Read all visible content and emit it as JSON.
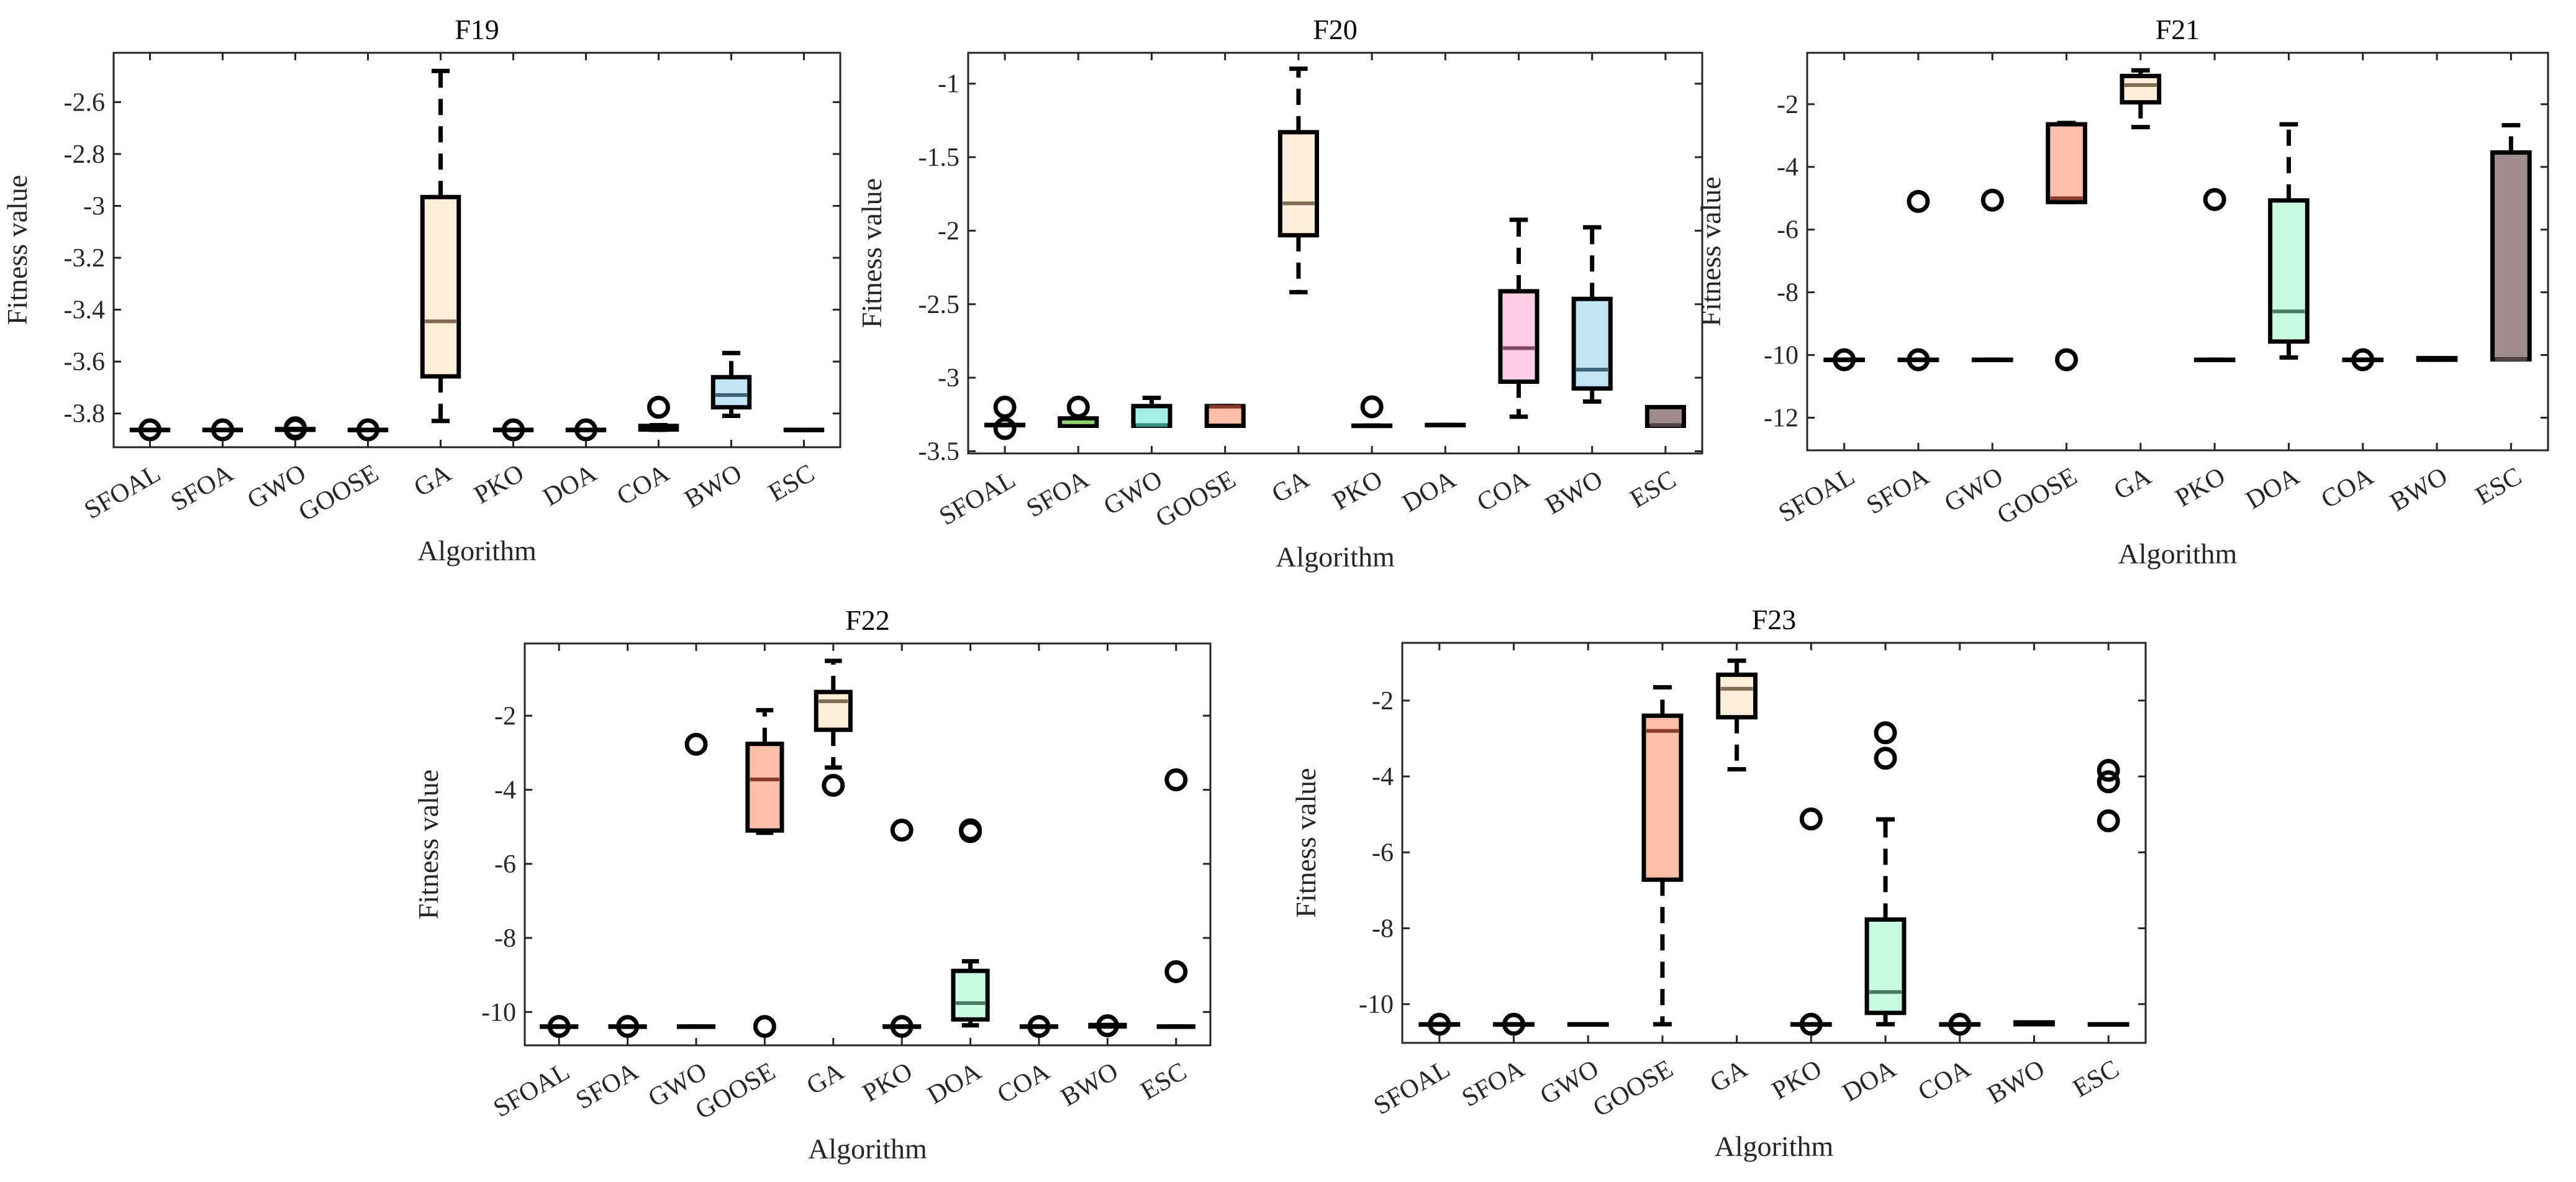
{
  "chart_data": [
    {
      "type": "boxplot",
      "title": "F19",
      "xlabel": "Algorithm",
      "ylabel": "Fitness value",
      "ylim": [
        -3.93,
        -2.41
      ],
      "yticks": [
        -3.8,
        -3.6,
        -3.4,
        -3.2,
        -3,
        -2.8,
        -2.6
      ],
      "ytick_labels": [
        "-3.8",
        "-3.6",
        "-3.4",
        "-3.2",
        "-3",
        "-2.8",
        "-2.6"
      ],
      "grid": false,
      "boxes": [
        {
          "name": "SFOAL",
          "q1": -3.863,
          "median": -3.863,
          "q3": -3.863,
          "lo": -3.863,
          "hi": -3.863,
          "outliers": [
            -3.863
          ]
        },
        {
          "name": "SFOA",
          "q1": -3.863,
          "median": -3.863,
          "q3": -3.863,
          "lo": -3.863,
          "hi": -3.863,
          "outliers": [
            -3.863
          ]
        },
        {
          "name": "GWO",
          "q1": -3.863,
          "median": -3.863,
          "q3": -3.86,
          "lo": -3.863,
          "hi": -3.86,
          "outliers": [
            -3.86,
            -3.855
          ]
        },
        {
          "name": "GOOSE",
          "q1": -3.863,
          "median": -3.863,
          "q3": -3.863,
          "lo": -3.863,
          "hi": -3.863,
          "outliers": [
            -3.863
          ]
        },
        {
          "name": "GA",
          "q1": -3.657,
          "median": -3.445,
          "q3": -2.966,
          "lo": -3.829,
          "hi": -2.48,
          "outliers": []
        },
        {
          "name": "PKO",
          "q1": -3.863,
          "median": -3.863,
          "q3": -3.863,
          "lo": -3.863,
          "hi": -3.863,
          "outliers": [
            -3.863
          ]
        },
        {
          "name": "DOA",
          "q1": -3.863,
          "median": -3.863,
          "q3": -3.863,
          "lo": -3.863,
          "hi": -3.863,
          "outliers": [
            -3.863
          ]
        },
        {
          "name": "COA",
          "q1": -3.862,
          "median": -3.855,
          "q3": -3.848,
          "lo": -3.863,
          "hi": -3.845,
          "outliers": [
            -3.776
          ]
        },
        {
          "name": "BWO",
          "q1": -3.776,
          "median": -3.729,
          "q3": -3.66,
          "lo": -3.809,
          "hi": -3.567,
          "outliers": []
        },
        {
          "name": "ESC",
          "q1": -3.863,
          "median": -3.863,
          "q3": -3.863,
          "lo": -3.863,
          "hi": -3.863,
          "outliers": []
        }
      ]
    },
    {
      "type": "boxplot",
      "title": "F20",
      "xlabel": "Algorithm",
      "ylabel": "Fitness value",
      "ylim": [
        -3.515,
        -0.79
      ],
      "yticks": [
        -3.5,
        -3,
        -2.5,
        -2,
        -1.5,
        -1
      ],
      "ytick_labels": [
        "-3.5",
        "-3",
        "-2.5",
        "-2",
        "-1.5",
        "-1"
      ],
      "grid": false,
      "boxes": [
        {
          "name": "SFOAL",
          "q1": -3.321,
          "median": -3.321,
          "q3": -3.321,
          "lo": -3.321,
          "hi": -3.321,
          "outliers": [
            -3.2,
            -3.346
          ]
        },
        {
          "name": "SFOA",
          "q1": -3.327,
          "median": -3.303,
          "q3": -3.277,
          "lo": -3.327,
          "hi": -3.277,
          "outliers": [
            -3.2
          ]
        },
        {
          "name": "GWO",
          "q1": -3.327,
          "median": -3.322,
          "q3": -3.193,
          "lo": -3.327,
          "hi": -3.137,
          "outliers": []
        },
        {
          "name": "GOOSE",
          "q1": -3.327,
          "median": -3.197,
          "q3": -3.193,
          "lo": -3.327,
          "hi": -3.193,
          "outliers": []
        },
        {
          "name": "GA",
          "q1": -2.031,
          "median": -1.814,
          "q3": -1.33,
          "lo": -2.418,
          "hi": -0.898,
          "outliers": []
        },
        {
          "name": "PKO",
          "q1": -3.326,
          "median": -3.326,
          "q3": -3.326,
          "lo": -3.326,
          "hi": -3.326,
          "outliers": [
            -3.198
          ]
        },
        {
          "name": "DOA",
          "q1": -3.321,
          "median": -3.321,
          "q3": -3.321,
          "lo": -3.321,
          "hi": -3.321,
          "outliers": []
        },
        {
          "name": "COA",
          "q1": -3.027,
          "median": -2.799,
          "q3": -2.412,
          "lo": -3.265,
          "hi": -1.926,
          "outliers": []
        },
        {
          "name": "BWO",
          "q1": -3.073,
          "median": -2.945,
          "q3": -2.464,
          "lo": -3.162,
          "hi": -1.977,
          "outliers": []
        },
        {
          "name": "ESC",
          "q1": -3.327,
          "median": -3.322,
          "q3": -3.2,
          "lo": -3.327,
          "hi": -3.2,
          "outliers": []
        }
      ]
    },
    {
      "type": "boxplot",
      "title": "F21",
      "xlabel": "Algorithm",
      "ylabel": "Fitness value",
      "ylim": [
        -13.04,
        -0.36
      ],
      "yticks": [
        -12,
        -10,
        -8,
        -6,
        -4,
        -2
      ],
      "ytick_labels": [
        "-12",
        "-10",
        "-8",
        "-6",
        "-4",
        "-2"
      ],
      "grid": false,
      "boxes": [
        {
          "name": "SFOAL",
          "q1": -10.15,
          "median": -10.15,
          "q3": -10.15,
          "lo": -10.15,
          "hi": -10.15,
          "outliers": [
            -10.15
          ]
        },
        {
          "name": "SFOA",
          "q1": -10.15,
          "median": -10.15,
          "q3": -10.15,
          "lo": -10.15,
          "hi": -10.15,
          "outliers": [
            -5.1,
            -10.15
          ]
        },
        {
          "name": "GWO",
          "q1": -10.15,
          "median": -10.15,
          "q3": -10.15,
          "lo": -10.15,
          "hi": -10.15,
          "outliers": [
            -5.06
          ]
        },
        {
          "name": "GOOSE",
          "q1": -5.12,
          "median": -5.0,
          "q3": -2.64,
          "lo": -5.12,
          "hi": -2.6,
          "outliers": [
            -10.15
          ]
        },
        {
          "name": "GA",
          "q1": -1.94,
          "median": -1.39,
          "q3": -1.1,
          "lo": -2.73,
          "hi": -0.92,
          "outliers": []
        },
        {
          "name": "PKO",
          "q1": -10.15,
          "median": -10.15,
          "q3": -10.15,
          "lo": -10.15,
          "hi": -10.15,
          "outliers": [
            -5.04
          ]
        },
        {
          "name": "DOA",
          "q1": -9.57,
          "median": -8.61,
          "q3": -5.07,
          "lo": -10.08,
          "hi": -2.64,
          "outliers": []
        },
        {
          "name": "COA",
          "q1": -10.15,
          "median": -10.15,
          "q3": -10.15,
          "lo": -10.15,
          "hi": -10.15,
          "outliers": [
            -10.15
          ]
        },
        {
          "name": "BWO",
          "q1": -10.15,
          "median": -10.12,
          "q3": -10.1,
          "lo": -10.15,
          "hi": -10.1,
          "outliers": []
        },
        {
          "name": "ESC",
          "q1": -10.14,
          "median": -10.14,
          "q3": -3.54,
          "lo": -10.14,
          "hi": -2.67,
          "outliers": []
        }
      ]
    },
    {
      "type": "boxplot",
      "title": "F22",
      "xlabel": "Algorithm",
      "ylabel": "Fitness value",
      "ylim": [
        -10.9,
        -0.05
      ],
      "yticks": [
        -10,
        -8,
        -6,
        -4,
        -2
      ],
      "ytick_labels": [
        "-10",
        "-8",
        "-6",
        "-4",
        "-2"
      ],
      "grid": false,
      "boxes": [
        {
          "name": "SFOAL",
          "q1": -10.39,
          "median": -10.39,
          "q3": -10.39,
          "lo": -10.39,
          "hi": -10.39,
          "outliers": [
            -10.39
          ]
        },
        {
          "name": "SFOA",
          "q1": -10.39,
          "median": -10.39,
          "q3": -10.39,
          "lo": -10.39,
          "hi": -10.39,
          "outliers": [
            -10.39
          ]
        },
        {
          "name": "GWO",
          "q1": -10.39,
          "median": -10.39,
          "q3": -10.39,
          "lo": -10.39,
          "hi": -10.39,
          "outliers": [
            -2.77
          ]
        },
        {
          "name": "GOOSE",
          "q1": -5.1,
          "median": -3.72,
          "q3": -2.76,
          "lo": -5.16,
          "hi": -1.85,
          "outliers": [
            -10.39
          ]
        },
        {
          "name": "GA",
          "q1": -2.38,
          "median": -1.61,
          "q3": -1.36,
          "lo": -3.4,
          "hi": -0.52,
          "outliers": [
            -3.88
          ]
        },
        {
          "name": "PKO",
          "q1": -10.39,
          "median": -10.39,
          "q3": -10.39,
          "lo": -10.39,
          "hi": -10.39,
          "outliers": [
            -5.09,
            -10.39
          ]
        },
        {
          "name": "DOA",
          "q1": -10.2,
          "median": -9.76,
          "q3": -8.89,
          "lo": -10.36,
          "hi": -8.63,
          "outliers": [
            -5.08,
            -5.13
          ]
        },
        {
          "name": "COA",
          "q1": -10.39,
          "median": -10.39,
          "q3": -10.39,
          "lo": -10.39,
          "hi": -10.39,
          "outliers": [
            -10.39
          ]
        },
        {
          "name": "BWO",
          "q1": -10.39,
          "median": -10.37,
          "q3": -10.35,
          "lo": -10.39,
          "hi": -10.35,
          "outliers": [
            -10.37
          ]
        },
        {
          "name": "ESC",
          "q1": -10.39,
          "median": -10.39,
          "q3": -10.39,
          "lo": -10.39,
          "hi": -10.39,
          "outliers": [
            -3.73,
            -8.91
          ]
        }
      ]
    },
    {
      "type": "boxplot",
      "title": "F23",
      "xlabel": "Algorithm",
      "ylabel": "Fitness value",
      "ylim": [
        -11.02,
        -0.48
      ],
      "yticks": [
        -10,
        -8,
        -6,
        -4,
        -2
      ],
      "ytick_labels": [
        "-10",
        "-8",
        "-6",
        "-4",
        "-2"
      ],
      "grid": false,
      "boxes": [
        {
          "name": "SFOAL",
          "q1": -10.53,
          "median": -10.53,
          "q3": -10.53,
          "lo": -10.53,
          "hi": -10.53,
          "outliers": [
            -10.53
          ]
        },
        {
          "name": "SFOA",
          "q1": -10.53,
          "median": -10.53,
          "q3": -10.53,
          "lo": -10.53,
          "hi": -10.53,
          "outliers": [
            -10.53
          ]
        },
        {
          "name": "GWO",
          "q1": -10.53,
          "median": -10.53,
          "q3": -10.53,
          "lo": -10.53,
          "hi": -10.53,
          "outliers": []
        },
        {
          "name": "GOOSE",
          "q1": -6.72,
          "median": -2.8,
          "q3": -2.4,
          "lo": -10.53,
          "hi": -1.65,
          "outliers": []
        },
        {
          "name": "GA",
          "q1": -2.44,
          "median": -1.69,
          "q3": -1.32,
          "lo": -3.81,
          "hi": -0.95,
          "outliers": []
        },
        {
          "name": "PKO",
          "q1": -10.53,
          "median": -10.53,
          "q3": -10.53,
          "lo": -10.53,
          "hi": -10.53,
          "outliers": [
            -5.12,
            -10.53
          ]
        },
        {
          "name": "DOA",
          "q1": -10.23,
          "median": -9.68,
          "q3": -7.77,
          "lo": -10.53,
          "hi": -5.13,
          "outliers": [
            -2.85,
            -3.52
          ]
        },
        {
          "name": "COA",
          "q1": -10.53,
          "median": -10.53,
          "q3": -10.53,
          "lo": -10.53,
          "hi": -10.53,
          "outliers": [
            -10.53
          ]
        },
        {
          "name": "BWO",
          "q1": -10.53,
          "median": -10.5,
          "q3": -10.48,
          "lo": -10.53,
          "hi": -10.48,
          "outliers": []
        },
        {
          "name": "ESC",
          "q1": -10.53,
          "median": -10.53,
          "q3": -10.53,
          "lo": -10.53,
          "hi": -10.53,
          "outliers": [
            -3.84,
            -4.14,
            -5.17
          ]
        }
      ]
    }
  ],
  "colors": {
    "SFOAL": {
      "fill": "#e8f4ff",
      "median": "#5a7a9a"
    },
    "SFOA": {
      "fill": "#d8f5c8",
      "median": "#8fd46a"
    },
    "GWO": {
      "fill": "#a2f0e6",
      "median": "#3a8a80"
    },
    "GOOSE": {
      "fill": "#ffbfa6",
      "median": "#8a3a28"
    },
    "GA": {
      "fill": "#ffefd9",
      "median": "#806a50"
    },
    "PKO": {
      "fill": "#e6e0ff",
      "median": "#5a5080"
    },
    "DOA": {
      "fill": "#c8fde2",
      "median": "#4a7a60"
    },
    "COA": {
      "fill": "#ffcce6",
      "median": "#804a64"
    },
    "BWO": {
      "fill": "#c2e4f5",
      "median": "#3e6478"
    },
    "ESC": {
      "fill": "#a08c8e",
      "median": "#504446"
    },
    "axis": "#262626",
    "box_edge": "#000000"
  }
}
